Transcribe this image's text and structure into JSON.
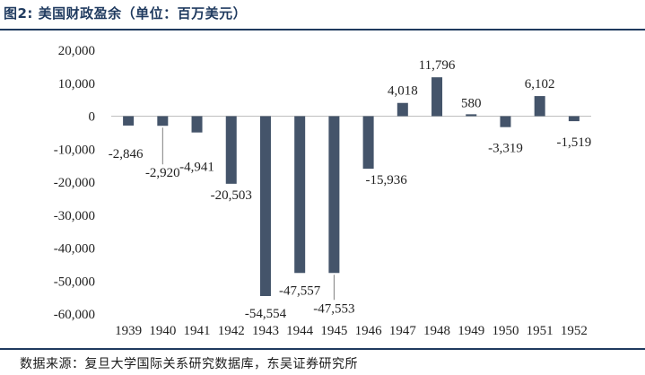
{
  "header": {
    "title": "图2: 美国财政盈余（单位：百万美元）"
  },
  "footer": {
    "source": "数据来源：复旦大学国际关系研究数据库，东吴证券研究所"
  },
  "colors": {
    "bar": "#44546a",
    "rule": "#1f3a5f",
    "axis": "#bfbfbf"
  },
  "chart_data": {
    "type": "bar",
    "title": "美国财政盈余（单位：百万美元）",
    "xlabel": "",
    "ylabel": "",
    "categories": [
      "1939",
      "1940",
      "1941",
      "1942",
      "1943",
      "1944",
      "1945",
      "1946",
      "1947",
      "1948",
      "1949",
      "1950",
      "1951",
      "1952"
    ],
    "values": [
      -2846,
      -2920,
      -4941,
      -20503,
      -54554,
      -47557,
      -47553,
      -15936,
      4018,
      11796,
      580,
      -3319,
      6102,
      -1519
    ],
    "value_labels": [
      "-2,846",
      "-2,920",
      "-4,941",
      "-20,503",
      "-54,554",
      "-47,557",
      "-47,553",
      "-15,936",
      "4,018",
      "11,796",
      "580",
      "-3,319",
      "6,102",
      "-1,519"
    ],
    "ylim": [
      -60000,
      20000
    ],
    "yticks": [
      20000,
      10000,
      0,
      -10000,
      -20000,
      -30000,
      -40000,
      -50000,
      -60000
    ],
    "ytick_labels": [
      "20,000",
      "10,000",
      "0",
      "-10,000",
      "-20,000",
      "-30,000",
      "-40,000",
      "-50,000",
      "-60,000"
    ],
    "grid": false,
    "legend": "none"
  }
}
